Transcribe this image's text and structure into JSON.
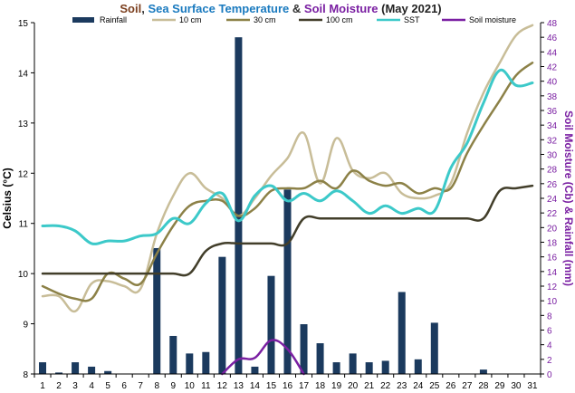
{
  "chart_data": {
    "type": "bar+line",
    "title_parts": [
      {
        "text": "Soil",
        "color": "#7b3f1e"
      },
      {
        "text": ", ",
        "color": "#333333"
      },
      {
        "text": "Sea Surface Temperature",
        "color": "#1a7abf"
      },
      {
        "text": " & ",
        "color": "#333333"
      },
      {
        "text": "Soil Moisture",
        "color": "#7a1fa2"
      },
      {
        "text": " (May 2021)",
        "color": "#222222"
      }
    ],
    "ylabel": "Celsius (°C)",
    "ylabel_right": "Soil Moisture (Cb) & Rainfall (mm)",
    "ylim": [
      8,
      15
    ],
    "ylim_right": [
      0,
      48
    ],
    "yticks": [
      8,
      9,
      10,
      11,
      12,
      13,
      14,
      15
    ],
    "yticks_right": [
      0,
      2,
      4,
      6,
      8,
      10,
      12,
      14,
      16,
      18,
      20,
      22,
      24,
      26,
      28,
      30,
      32,
      34,
      36,
      38,
      40,
      42,
      44,
      46,
      48
    ],
    "x": [
      1,
      2,
      3,
      4,
      5,
      6,
      7,
      8,
      9,
      10,
      11,
      12,
      13,
      14,
      15,
      16,
      17,
      18,
      19,
      20,
      21,
      22,
      23,
      24,
      25,
      26,
      27,
      28,
      29,
      30,
      31
    ],
    "grid": false,
    "legend_position": "top",
    "series": [
      {
        "name": "Rainfall",
        "kind": "bar",
        "axis": "right",
        "color": "#1b3a5e",
        "values": [
          1.6,
          0.2,
          1.6,
          1.0,
          0.4,
          0,
          0,
          17.2,
          5.2,
          2.8,
          3.0,
          16.0,
          46.0,
          1.0,
          13.4,
          25.2,
          6.8,
          4.2,
          1.6,
          2.8,
          1.6,
          1.8,
          11.2,
          2.0,
          7.0,
          0,
          0,
          0.6,
          0,
          0,
          0
        ]
      },
      {
        "name": "10 cm",
        "kind": "line",
        "axis": "left",
        "color": "#c8bd98",
        "values": [
          9.55,
          9.55,
          9.25,
          9.8,
          9.85,
          9.75,
          9.7,
          10.8,
          11.55,
          12.0,
          11.7,
          11.5,
          11.15,
          11.5,
          11.95,
          12.3,
          12.8,
          11.8,
          12.7,
          12.05,
          11.9,
          12.0,
          11.6,
          11.5,
          11.55,
          11.8,
          12.8,
          13.6,
          14.2,
          14.75,
          14.95
        ]
      },
      {
        "name": "30 cm",
        "kind": "line",
        "axis": "left",
        "color": "#8c8147",
        "values": [
          9.75,
          9.6,
          9.5,
          9.5,
          10.0,
          9.9,
          9.8,
          10.4,
          10.95,
          11.35,
          11.45,
          11.45,
          11.15,
          11.3,
          11.65,
          11.7,
          11.7,
          11.85,
          11.7,
          12.05,
          11.85,
          11.75,
          11.8,
          11.6,
          11.7,
          11.7,
          12.4,
          12.95,
          13.45,
          13.95,
          14.2
        ]
      },
      {
        "name": "100 cm",
        "kind": "line",
        "axis": "left",
        "color": "#423e2a",
        "values": [
          10.0,
          10.0,
          10.0,
          10.0,
          10.0,
          10.0,
          10.0,
          10.0,
          10.0,
          10.0,
          10.45,
          10.6,
          10.6,
          10.6,
          10.6,
          10.6,
          11.1,
          11.1,
          11.1,
          11.1,
          11.1,
          11.1,
          11.1,
          11.1,
          11.1,
          11.1,
          11.1,
          11.1,
          11.65,
          11.7,
          11.75
        ]
      },
      {
        "name": "SST",
        "kind": "line",
        "axis": "left",
        "color": "#3cc9c9",
        "values": [
          10.95,
          10.95,
          10.85,
          10.6,
          10.65,
          10.65,
          10.75,
          10.8,
          11.1,
          11.0,
          11.4,
          11.6,
          11.05,
          11.55,
          11.75,
          11.45,
          11.6,
          11.45,
          11.65,
          11.45,
          11.2,
          11.35,
          11.2,
          11.3,
          11.25,
          12.1,
          12.6,
          13.4,
          14.05,
          13.75,
          13.8
        ]
      },
      {
        "name": "Soil moisture",
        "kind": "line",
        "axis": "right",
        "color": "#7a1fa2",
        "values": [
          null,
          null,
          null,
          null,
          null,
          null,
          null,
          null,
          null,
          null,
          null,
          0,
          2.0,
          2.2,
          4.6,
          3.4,
          0,
          null,
          null,
          null,
          null,
          null,
          null,
          null,
          null,
          null,
          null,
          null,
          null,
          null,
          null
        ]
      }
    ]
  }
}
